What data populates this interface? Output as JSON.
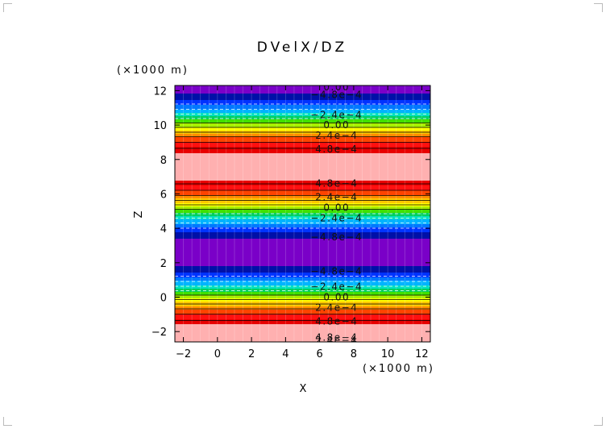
{
  "chart_data": {
    "type": "heatmap",
    "title": "DVelX/DZ",
    "xlabel": "X",
    "ylabel": "Z",
    "x_unit": "(×1000 m)",
    "y_unit": "(×1000 m)",
    "xlim": [
      -2.5,
      12.5
    ],
    "ylim": [
      -2.6,
      12.3
    ],
    "x_ticks": [
      -2,
      0,
      2,
      4,
      6,
      8,
      10,
      12
    ],
    "y_ticks": [
      -2,
      0,
      2,
      4,
      6,
      8,
      10,
      12
    ],
    "x_tick_labels": [
      "−2",
      "0",
      "2",
      "4",
      "6",
      "8",
      "10",
      "12"
    ],
    "y_tick_labels": [
      "−2",
      "0",
      "2",
      "4",
      "6",
      "8",
      "10",
      "12"
    ],
    "field": {
      "amplitude": 0.00075,
      "wavelength_z": 10.0,
      "peak_z": 7.6
    },
    "contour_step": 0.00012,
    "contour_levels": [
      -0.00048,
      -0.00036,
      -0.00024,
      -0.00012,
      0.0,
      0.00012,
      0.00024,
      0.00036,
      0.00048,
      0.0006
    ],
    "contour_labels": [
      {
        "x": 7.0,
        "z": 12.2,
        "text": "0.00"
      },
      {
        "x": 7.0,
        "z": 11.75,
        "text": "−4.8e−4"
      },
      {
        "x": 7.0,
        "z": 10.6,
        "text": "−2.4e−4"
      },
      {
        "x": 7.0,
        "z": 10.0,
        "text": "0.00"
      },
      {
        "x": 7.0,
        "z": 9.4,
        "text": "2.4e−4"
      },
      {
        "x": 7.0,
        "z": 8.6,
        "text": "4.8e−4"
      },
      {
        "x": 7.0,
        "z": 6.6,
        "text": "4.8e−4"
      },
      {
        "x": 7.0,
        "z": 5.8,
        "text": "2.4e−4"
      },
      {
        "x": 7.0,
        "z": 5.2,
        "text": "0.00"
      },
      {
        "x": 7.0,
        "z": 4.6,
        "text": "−2.4e−4"
      },
      {
        "x": 7.0,
        "z": 3.5,
        "text": "−4.8e−4"
      },
      {
        "x": 7.0,
        "z": 1.5,
        "text": "−4.8e−4"
      },
      {
        "x": 7.0,
        "z": 0.6,
        "text": "−2.4e−4"
      },
      {
        "x": 7.0,
        "z": 0.0,
        "text": "0.00"
      },
      {
        "x": 7.0,
        "z": -0.6,
        "text": "2.4e−4"
      },
      {
        "x": 7.0,
        "z": -1.4,
        "text": "4.8e−4"
      },
      {
        "x": 7.0,
        "z": -2.35,
        "text": "4.8e−4"
      },
      {
        "x": 7.0,
        "z": -2.5,
        "text": "2.4e−4"
      }
    ],
    "colormap": [
      "#7a00c8",
      "#0010a8",
      "#0033ff",
      "#0078ff",
      "#00b4ff",
      "#00e0c0",
      "#00d060",
      "#40e000",
      "#a8f000",
      "#ffff00",
      "#ffc800",
      "#ff8c00",
      "#ff4400",
      "#ff1010",
      "#e80000",
      "#ffb0b0"
    ],
    "grid": true
  }
}
